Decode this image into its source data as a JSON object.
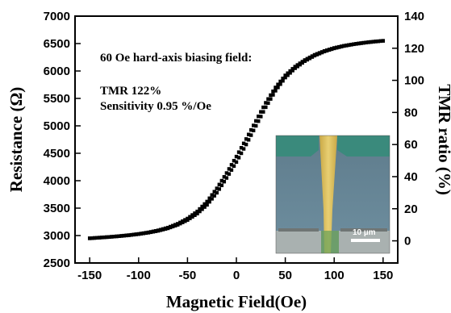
{
  "chart_data": {
    "type": "scatter",
    "xlabel": "Magnetic Field(Oe)",
    "ylabel": "Resistance (Ω)",
    "y2label": "TMR ratio (%)",
    "xlim": [
      -165,
      165
    ],
    "ylim": [
      2500,
      7000
    ],
    "y2lim": [
      -13.8,
      140
    ],
    "x_ticks": [
      "-150",
      "-100",
      "-50",
      "0",
      "50",
      "100",
      "150"
    ],
    "y_ticks": [
      "2500",
      "3000",
      "3500",
      "4000",
      "4500",
      "5000",
      "5500",
      "6000",
      "6500",
      "7000"
    ],
    "y2_ticks": [
      "0",
      "20",
      "40",
      "60",
      "80",
      "100",
      "120",
      "140"
    ],
    "grid": false,
    "annotations": [
      "60 Oe hard-axis biasing field:",
      "TMR 122%",
      "Sensitivity 0.95 %/Oe"
    ],
    "series": [
      {
        "marker": "square",
        "color": "#000000",
        "x": [
          -150,
          -140,
          -130,
          -120,
          -110,
          -100,
          -90,
          -80,
          -70,
          -60,
          -50,
          -40,
          -30,
          -20,
          -10,
          0,
          10,
          20,
          30,
          40,
          50,
          60,
          70,
          80,
          90,
          100,
          110,
          120,
          130,
          140,
          150
        ],
        "y": [
          2950,
          2962,
          2975,
          2990,
          3008,
          3030,
          3058,
          3095,
          3145,
          3215,
          3310,
          3440,
          3620,
          3860,
          4140,
          4440,
          4760,
          5090,
          5420,
          5700,
          5920,
          6080,
          6200,
          6295,
          6365,
          6420,
          6460,
          6490,
          6515,
          6535,
          6550
        ]
      },
      {
        "marker": "square",
        "color": "#000000",
        "x": [
          -150,
          -140,
          -130,
          -120,
          -110,
          -100,
          -90,
          -80,
          -70,
          -60,
          -50,
          -40,
          -30,
          -20,
          -10,
          0,
          10,
          20,
          30,
          40,
          50,
          60,
          70,
          80,
          90,
          100,
          110,
          120,
          130,
          140,
          150
        ],
        "y": [
          2950,
          2962,
          2974,
          2988,
          3005,
          3026,
          3052,
          3086,
          3132,
          3196,
          3283,
          3400,
          3560,
          3780,
          4050,
          4340,
          4660,
          5000,
          5340,
          5640,
          5880,
          6050,
          6180,
          6280,
          6355,
          6412,
          6455,
          6487,
          6512,
          6533,
          6550
        ]
      }
    ],
    "inset": {
      "description_label": "10 µm"
    }
  }
}
